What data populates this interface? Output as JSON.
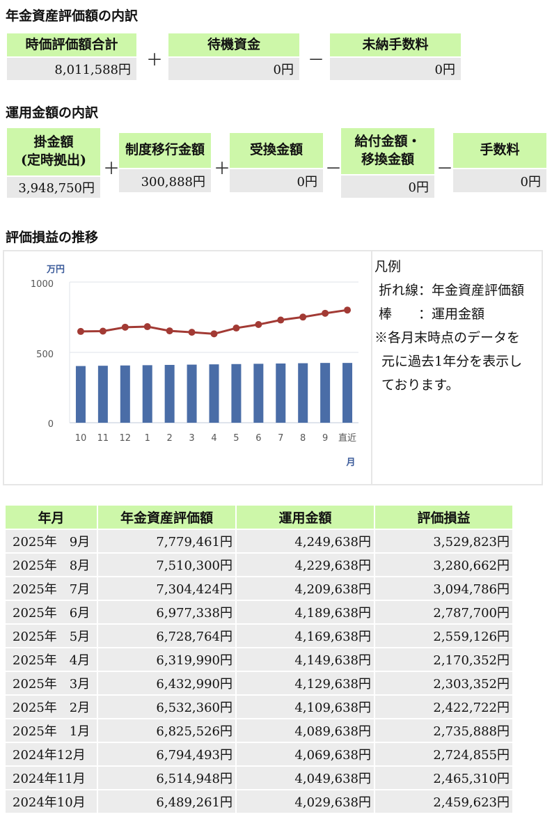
{
  "asset_breakdown": {
    "title": "年金資産評価額の内訳",
    "items": [
      {
        "label": "時価評価額合計",
        "value": "8,011,588円"
      },
      {
        "label": "待機資金",
        "value": "0円"
      },
      {
        "label": "未納手数料",
        "value": "0円"
      }
    ],
    "ops": [
      "＋",
      "－"
    ]
  },
  "operation_breakdown": {
    "title": "運用金額の内訳",
    "items": [
      {
        "label1": "掛金額",
        "label2": "(定時拠出)",
        "value": "3,948,750円"
      },
      {
        "label1": "制度移行金額",
        "label2": "",
        "value": "300,888円"
      },
      {
        "label1": "受換金額",
        "label2": "",
        "value": "0円"
      },
      {
        "label1": "給付金額・",
        "label2": "移換金額",
        "value": "0円"
      },
      {
        "label1": "手数料",
        "label2": "",
        "value": "0円"
      }
    ],
    "ops": [
      "＋",
      "＋",
      "－",
      "－"
    ]
  },
  "trend": {
    "title": "評価損益の推移",
    "legend": {
      "heading": "凡例",
      "line_label": "折れ線：年金資産評価額",
      "bar_label": "棒　　：運用金額",
      "note1": "※各月末時点のデータを",
      "note2": "元に過去1年分を表示し",
      "note3": "ております。"
    }
  },
  "chart_data": {
    "type": "bar",
    "title": "",
    "ylabel": "万円",
    "xlabel": "月",
    "ylim": [
      0,
      1000
    ],
    "yticks": [
      "1000",
      "500",
      "0"
    ],
    "categories": [
      "10",
      "11",
      "12",
      "1",
      "2",
      "3",
      "4",
      "5",
      "6",
      "7",
      "8",
      "9",
      "直近"
    ],
    "series": [
      {
        "name": "運用金額",
        "kind": "bar",
        "color": "#4a6da7",
        "values": [
          403,
          405,
          407,
          409,
          411,
          413,
          415,
          417,
          419,
          421,
          423,
          425,
          425
        ]
      },
      {
        "name": "年金資産評価額",
        "kind": "line",
        "color": "#a23a34",
        "values": [
          649,
          651,
          679,
          683,
          653,
          643,
          632,
          673,
          698,
          730,
          751,
          778,
          801
        ]
      }
    ]
  },
  "history": {
    "headers": [
      "年月",
      "年金資産評価額",
      "運用金額",
      "評価損益"
    ],
    "rows": [
      [
        "2025年　9月",
        "7,779,461円",
        "4,249,638円",
        "3,529,823円"
      ],
      [
        "2025年　8月",
        "7,510,300円",
        "4,229,638円",
        "3,280,662円"
      ],
      [
        "2025年　7月",
        "7,304,424円",
        "4,209,638円",
        "3,094,786円"
      ],
      [
        "2025年　6月",
        "6,977,338円",
        "4,189,638円",
        "2,787,700円"
      ],
      [
        "2025年　5月",
        "6,728,764円",
        "4,169,638円",
        "2,559,126円"
      ],
      [
        "2025年　4月",
        "6,319,990円",
        "4,149,638円",
        "2,170,352円"
      ],
      [
        "2025年　3月",
        "6,432,990円",
        "4,129,638円",
        "2,303,352円"
      ],
      [
        "2025年　2月",
        "6,532,360円",
        "4,109,638円",
        "2,422,722円"
      ],
      [
        "2025年　1月",
        "6,825,526円",
        "4,089,638円",
        "2,735,888円"
      ],
      [
        "2024年12月",
        "6,794,493円",
        "4,069,638円",
        "2,724,855円"
      ],
      [
        "2024年11月",
        "6,514,948円",
        "4,049,638円",
        "2,465,310円"
      ],
      [
        "2024年10月",
        "6,489,261円",
        "4,029,638円",
        "2,459,623円"
      ]
    ]
  }
}
